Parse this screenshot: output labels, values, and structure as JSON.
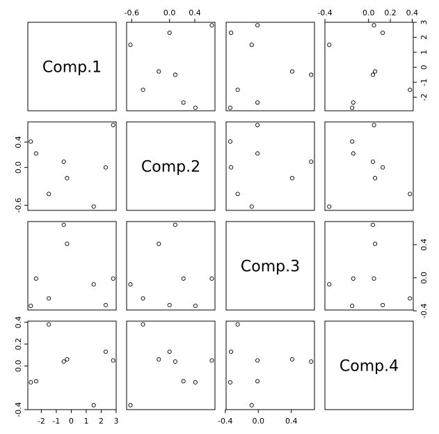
{
  "chart_data": {
    "type": "scatter",
    "variables": [
      {
        "name": "Comp.1",
        "values": [
          -2.7,
          -2.35,
          -0.5,
          -0.28,
          -1.5,
          1.5,
          2.3,
          2.8
        ],
        "lim": [
          -2.9,
          3.0
        ],
        "ticks": [
          -2,
          -1,
          0,
          1,
          2,
          3
        ]
      },
      {
        "name": "Comp.2",
        "values": [
          0.41,
          0.22,
          0.09,
          -0.17,
          -0.42,
          -0.62,
          0.0,
          0.67
        ],
        "lim": [
          -0.68,
          0.72
        ],
        "ticks": [
          -0.6,
          {
            "value": 0,
            "label": "0.0"
          },
          0.4
        ]
      },
      {
        "name": "Comp.3",
        "values": [
          -0.34,
          -0.01,
          0.64,
          0.41,
          -0.25,
          -0.08,
          -0.33,
          -0.01
        ],
        "lim": [
          -0.39,
          0.68
        ],
        "ticks": [
          -0.4,
          {
            "value": 0,
            "label": "0.0"
          },
          0.4
        ]
      },
      {
        "name": "Comp.4",
        "values": [
          -0.15,
          -0.14,
          0.04,
          0.06,
          0.38,
          -0.36,
          0.13,
          0.05
        ],
        "lim": [
          -0.4,
          0.41
        ],
        "ticks": [
          -0.4,
          {
            "value": 0,
            "label": "0.0"
          },
          0.2,
          0.4
        ]
      }
    ]
  }
}
